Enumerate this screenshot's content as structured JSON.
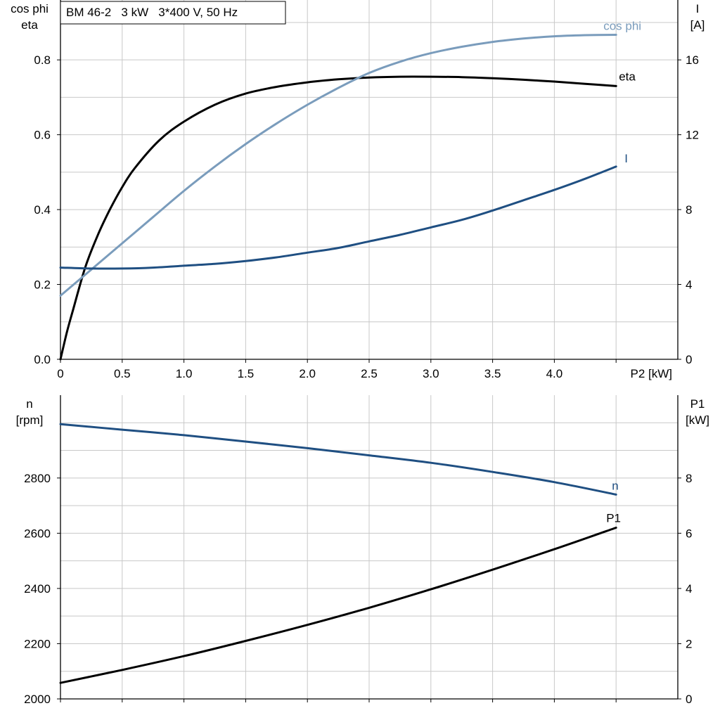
{
  "title_box": "BM 46-2   3 kW   3*400 V, 50 Hz",
  "colors": {
    "grid": "#c8c8c8",
    "axis": "#000000",
    "eta": "#000000",
    "cos_phi": "#7a9cbc",
    "current": "#1f4f82",
    "speed": "#1f4f82",
    "p1": "#000000"
  },
  "chart_data": [
    {
      "type": "line",
      "name": "upper",
      "xlabel": "P2 [kW]",
      "ylabel_left": [
        "cos phi",
        "eta"
      ],
      "ylabel_right": [
        "I",
        "[A]"
      ],
      "xlim": [
        0,
        5.0
      ],
      "ylim_left": [
        0,
        0.96
      ],
      "ylim_right": [
        0,
        19.2
      ],
      "x_ticks": [
        "0",
        "0.5",
        "1.0",
        "1.5",
        "2.0",
        "2.5",
        "3.0",
        "3.5",
        "4.0"
      ],
      "y_ticks_left": [
        "0.0",
        "0.2",
        "0.4",
        "0.6",
        "0.8"
      ],
      "y_ticks_right": [
        "0",
        "4",
        "8",
        "12",
        "16"
      ],
      "grid": true,
      "series": [
        {
          "name": "eta",
          "axis": "left",
          "x": [
            0,
            0.05,
            0.1,
            0.2,
            0.3,
            0.4,
            0.5,
            0.6,
            0.8,
            1.0,
            1.25,
            1.5,
            1.75,
            2.0,
            2.25,
            2.5,
            2.75,
            3.0,
            3.25,
            3.5,
            3.75,
            4.0,
            4.25,
            4.5
          ],
          "y": [
            0.0,
            0.07,
            0.13,
            0.245,
            0.33,
            0.4,
            0.46,
            0.51,
            0.585,
            0.635,
            0.68,
            0.71,
            0.728,
            0.74,
            0.748,
            0.753,
            0.755,
            0.755,
            0.754,
            0.751,
            0.747,
            0.742,
            0.736,
            0.73
          ]
        },
        {
          "name": "cos phi",
          "axis": "left",
          "x": [
            0,
            0.25,
            0.5,
            0.75,
            1.0,
            1.25,
            1.5,
            1.75,
            2.0,
            2.25,
            2.5,
            2.75,
            3.0,
            3.25,
            3.5,
            3.75,
            4.0,
            4.25,
            4.5
          ],
          "y": [
            0.17,
            0.24,
            0.31,
            0.38,
            0.45,
            0.515,
            0.575,
            0.63,
            0.68,
            0.725,
            0.765,
            0.795,
            0.818,
            0.835,
            0.848,
            0.857,
            0.863,
            0.866,
            0.867
          ]
        },
        {
          "name": "I",
          "axis": "right",
          "x": [
            0,
            0.25,
            0.5,
            0.75,
            1.0,
            1.25,
            1.5,
            1.75,
            2.0,
            2.25,
            2.5,
            2.75,
            3.0,
            3.25,
            3.5,
            3.75,
            4.0,
            4.25,
            4.5
          ],
          "y": [
            4.9,
            4.85,
            4.85,
            4.9,
            5.0,
            5.1,
            5.25,
            5.45,
            5.7,
            5.95,
            6.3,
            6.65,
            7.05,
            7.45,
            7.95,
            8.5,
            9.05,
            9.65,
            10.3
          ]
        }
      ]
    },
    {
      "type": "line",
      "name": "lower",
      "ylabel_left": [
        "n",
        "[rpm]"
      ],
      "ylabel_right": [
        "P1",
        "[kW]"
      ],
      "xlim": [
        0,
        5.0
      ],
      "ylim_left": [
        2000,
        3100
      ],
      "ylim_right": [
        0,
        11
      ],
      "y_ticks_left": [
        "2000",
        "2200",
        "2400",
        "2600",
        "2800"
      ],
      "y_ticks_right": [
        "0",
        "2",
        "4",
        "6",
        "8"
      ],
      "grid": true,
      "series": [
        {
          "name": "n",
          "axis": "left",
          "x": [
            0,
            0.5,
            1.0,
            1.5,
            2.0,
            2.5,
            3.0,
            3.5,
            4.0,
            4.5
          ],
          "y": [
            2995,
            2975,
            2955,
            2932,
            2908,
            2882,
            2855,
            2822,
            2785,
            2740
          ]
        },
        {
          "name": "P1",
          "axis": "right",
          "x": [
            0,
            0.5,
            1.0,
            1.5,
            2.0,
            2.5,
            3.0,
            3.5,
            4.0,
            4.5
          ],
          "y": [
            0.58,
            1.05,
            1.55,
            2.1,
            2.68,
            3.3,
            3.97,
            4.68,
            5.42,
            6.2
          ]
        }
      ]
    }
  ]
}
